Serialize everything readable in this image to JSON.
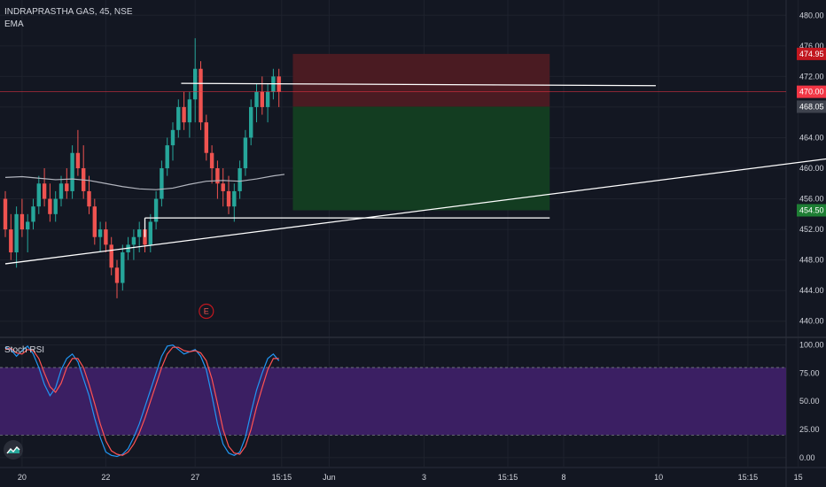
{
  "header": {
    "symbol_line": "INDRAPRASTHA GAS, 45, NSE",
    "indicator": "EMA"
  },
  "colors": {
    "background": "#131722",
    "grid": "#1e222d",
    "up": "#26a69a",
    "down": "#ef5350",
    "ema": "#b2b5be",
    "stop_zone": "#4a1b22",
    "target_zone": "#133d21",
    "rsi_band": "#3b1f63",
    "k_line": "#2196f3",
    "d_line": "#ff5252",
    "price_line": "#f23645"
  },
  "chart_data": {
    "type": "candlestick",
    "main_ylim": [
      438,
      482
    ],
    "main_yticks": [
      "480.00",
      "476.00",
      "472.00",
      "468.00",
      "464.00",
      "460.00",
      "456.00",
      "452.00",
      "448.00",
      "444.00",
      "440.00"
    ],
    "main_ytick_values": [
      480,
      476,
      472,
      468,
      464,
      460,
      456,
      452,
      448,
      444,
      440
    ],
    "x_tick_labels": [
      "20",
      "22",
      "27",
      "15:15",
      "Jun",
      "3",
      "15:15",
      "8",
      "10",
      "15:15",
      "15"
    ],
    "x_tick_index": [
      3,
      18,
      34,
      49.5,
      58,
      75,
      90,
      100,
      117,
      133,
      142
    ],
    "x_range": [
      0,
      150
    ],
    "price_badges": [
      {
        "label": "474.95",
        "value": 474.95,
        "color": "#c2171f"
      },
      {
        "label": "470.00",
        "value": 470.0,
        "color": "#f23645"
      },
      {
        "label": "468.05",
        "value": 468.05,
        "color": "#3e424d"
      },
      {
        "label": "454.50",
        "value": 454.5,
        "color": "#1e7e34"
      }
    ],
    "candles": [
      [
        456,
        457,
        451,
        452
      ],
      [
        452,
        454,
        448,
        449
      ],
      [
        449,
        455,
        447,
        454
      ],
      [
        454,
        456,
        451,
        452
      ],
      [
        452,
        454,
        449,
        453
      ],
      [
        453,
        456,
        452,
        455
      ],
      [
        455,
        459,
        454,
        458
      ],
      [
        458,
        460,
        455,
        456
      ],
      [
        456,
        458,
        453,
        454
      ],
      [
        454,
        457,
        453,
        456
      ],
      [
        456,
        459,
        455,
        458
      ],
      [
        458,
        460,
        456,
        457
      ],
      [
        457,
        463,
        456,
        462
      ],
      [
        462,
        465,
        459,
        460
      ],
      [
        460,
        463,
        456,
        457
      ],
      [
        457,
        459,
        454,
        455
      ],
      [
        455,
        456,
        450,
        451
      ],
      [
        451,
        453,
        449,
        452
      ],
      [
        452,
        453,
        449,
        450
      ],
      [
        450,
        451,
        446,
        447
      ],
      [
        447,
        448,
        443,
        445
      ],
      [
        445,
        450,
        444,
        449
      ],
      [
        449,
        451,
        448,
        450
      ],
      [
        450,
        452,
        448,
        451
      ],
      [
        451,
        453,
        449,
        452
      ],
      [
        452,
        453,
        449,
        450
      ],
      [
        450,
        454,
        449,
        453
      ],
      [
        453,
        457,
        452,
        456
      ],
      [
        456,
        461,
        455,
        460
      ],
      [
        460,
        464,
        459,
        463
      ],
      [
        463,
        466,
        461,
        465
      ],
      [
        465,
        469,
        464,
        468
      ],
      [
        468,
        470,
        465,
        466
      ],
      [
        466,
        470,
        464,
        469
      ],
      [
        469,
        477,
        466,
        473
      ],
      [
        473,
        474,
        465,
        466
      ],
      [
        466,
        467,
        461,
        462
      ],
      [
        462,
        463,
        458,
        460
      ],
      [
        460,
        461,
        456,
        458
      ],
      [
        458,
        460,
        455,
        457
      ],
      [
        457,
        459,
        454,
        455
      ],
      [
        455,
        458,
        453,
        457
      ],
      [
        457,
        461,
        456,
        460
      ],
      [
        460,
        465,
        459,
        464
      ],
      [
        464,
        469,
        463,
        468
      ],
      [
        468,
        471,
        466,
        470
      ],
      [
        470,
        472,
        467,
        468
      ],
      [
        468,
        471,
        466,
        470
      ],
      [
        470,
        473,
        469,
        472
      ],
      [
        472,
        473,
        468,
        470
      ]
    ],
    "ema": [
      [
        0,
        458.8
      ],
      [
        3,
        458.9
      ],
      [
        6,
        458.7
      ],
      [
        9,
        458.5
      ],
      [
        12,
        458.6
      ],
      [
        15,
        458.4
      ],
      [
        18,
        458.0
      ],
      [
        21,
        457.6
      ],
      [
        24,
        457.3
      ],
      [
        27,
        457.2
      ],
      [
        30,
        457.4
      ],
      [
        33,
        457.9
      ],
      [
        36,
        458.3
      ],
      [
        39,
        458.4
      ],
      [
        42,
        458.3
      ],
      [
        45,
        458.6
      ],
      [
        48,
        459.0
      ],
      [
        50,
        459.2
      ]
    ],
    "trendlines": [
      {
        "x1": 0,
        "y1": 447.5,
        "x2": 150,
        "y2": 461.5
      },
      {
        "x1": 31.5,
        "y1": 471.1,
        "x2": 116.5,
        "y2": 470.8
      },
      {
        "x1": 25,
        "y1": 453.5,
        "x2": 97.5,
        "y2": 453.5
      },
      {
        "x1": 25,
        "y1": 453.5,
        "x2": 25,
        "y2": 451.0
      }
    ],
    "position": {
      "x_start": 51.5,
      "x_end": 97.5,
      "entry": 468.05,
      "stop": 474.95,
      "target": 454.5
    },
    "horizontal_price_line": 470.0,
    "event_marker": {
      "label": "E",
      "index": 36,
      "price": 441.3
    },
    "stoch_rsi": {
      "title": "Stoch RSI",
      "ylim": [
        -8,
        106
      ],
      "yticks": [
        "100.00",
        "75.00",
        "50.00",
        "25.00",
        "0.00"
      ],
      "ytick_values": [
        100,
        75,
        50,
        25,
        0
      ],
      "band": [
        20,
        80
      ],
      "k": [
        98,
        96,
        90,
        95,
        99,
        92,
        80,
        65,
        55,
        62,
        78,
        88,
        92,
        85,
        70,
        55,
        35,
        18,
        5,
        2,
        1,
        3,
        8,
        18,
        30,
        45,
        60,
        75,
        90,
        99,
        100,
        96,
        92,
        94,
        96,
        90,
        78,
        55,
        30,
        12,
        4,
        2,
        5,
        18,
        40,
        60,
        75,
        88,
        92,
        86
      ],
      "d": [
        96,
        97,
        93,
        92,
        96,
        95,
        88,
        75,
        63,
        58,
        66,
        80,
        88,
        88,
        80,
        65,
        48,
        30,
        15,
        6,
        3,
        2,
        5,
        12,
        22,
        35,
        50,
        65,
        80,
        92,
        98,
        98,
        95,
        94,
        95,
        93,
        86,
        70,
        48,
        25,
        10,
        4,
        3,
        10,
        25,
        45,
        62,
        78,
        88,
        88
      ]
    }
  }
}
